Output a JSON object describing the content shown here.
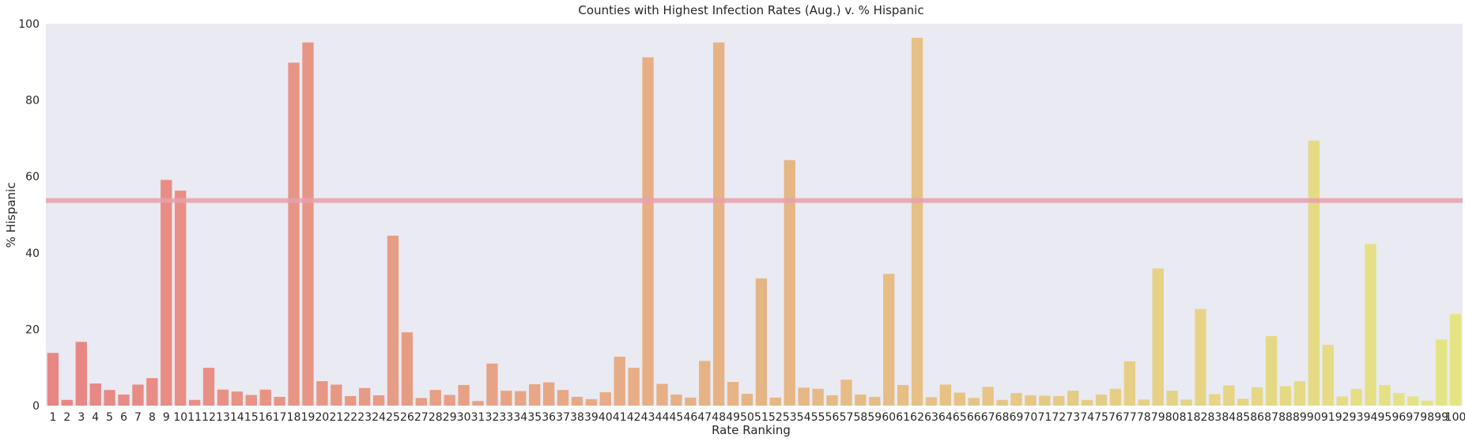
{
  "chart_data": {
    "type": "bar",
    "title": "Counties with Highest Infection Rates (Aug.) v. % Hispanic",
    "xlabel": "Rate Ranking",
    "ylabel": "% Hispanic",
    "ylim": [
      0,
      100
    ],
    "yticks": [
      0,
      20,
      40,
      60,
      80,
      100
    ],
    "grid": false,
    "reference_line": {
      "y": 53.7,
      "color": "#e8a0ae"
    },
    "background_color": "#eaeaf2",
    "color_start": "#e88585",
    "color_end": "#e5e585",
    "categories": [
      "1",
      "2",
      "3",
      "4",
      "5",
      "6",
      "7",
      "8",
      "9",
      "10",
      "11",
      "12",
      "13",
      "14",
      "15",
      "16",
      "17",
      "18",
      "19",
      "20",
      "21",
      "22",
      "23",
      "24",
      "25",
      "26",
      "27",
      "28",
      "29",
      "30",
      "31",
      "32",
      "33",
      "34",
      "35",
      "36",
      "37",
      "38",
      "39",
      "40",
      "41",
      "42",
      "43",
      "44",
      "45",
      "46",
      "47",
      "48",
      "49",
      "50",
      "51",
      "52",
      "53",
      "54",
      "55",
      "56",
      "57",
      "58",
      "59",
      "60",
      "61",
      "62",
      "63",
      "64",
      "65",
      "66",
      "67",
      "68",
      "69",
      "70",
      "71",
      "72",
      "73",
      "74",
      "75",
      "76",
      "77",
      "78",
      "79",
      "80",
      "81",
      "82",
      "83",
      "84",
      "85",
      "86",
      "87",
      "88",
      "89",
      "90",
      "91",
      "92",
      "93",
      "94",
      "95",
      "96",
      "97",
      "98",
      "99",
      "100"
    ],
    "values": [
      13.8,
      1.5,
      16.7,
      5.8,
      4.1,
      2.9,
      5.5,
      7.2,
      59.1,
      56.3,
      1.5,
      9.9,
      4.2,
      3.7,
      2.8,
      4.2,
      2.3,
      89.8,
      95.1,
      6.4,
      5.5,
      2.5,
      4.6,
      2.7,
      44.5,
      19.2,
      2.0,
      4.1,
      2.8,
      5.4,
      1.2,
      11.0,
      3.9,
      3.8,
      5.6,
      6.1,
      4.1,
      2.3,
      1.7,
      3.5,
      12.8,
      9.9,
      91.2,
      5.7,
      2.9,
      2.1,
      11.7,
      95.1,
      6.2,
      3.1,
      33.3,
      2.1,
      64.3,
      4.7,
      4.4,
      2.7,
      6.8,
      2.9,
      2.3,
      34.5,
      5.4,
      96.3,
      2.2,
      5.5,
      3.4,
      2.0,
      4.9,
      1.5,
      3.3,
      2.7,
      2.6,
      2.5,
      3.9,
      1.5,
      2.9,
      4.4,
      11.6,
      1.6,
      35.9,
      3.9,
      1.6,
      25.3,
      3.0,
      5.3,
      1.8,
      4.8,
      18.2,
      5.1,
      6.4,
      69.4,
      15.9,
      2.4,
      4.4,
      42.3,
      5.4,
      3.3,
      2.4,
      1.3,
      17.3,
      24.0
    ]
  }
}
